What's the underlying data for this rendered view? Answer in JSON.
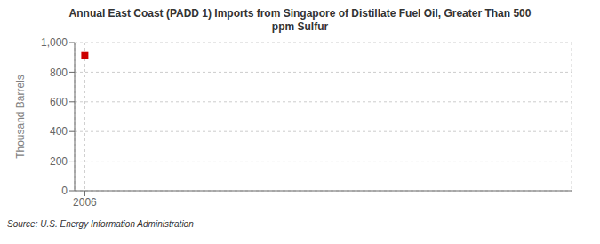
{
  "chart_data": {
    "type": "scatter",
    "title": "Annual East Coast (PADD 1) Imports from Singapore of Distillate Fuel Oil, Greater Than 500\nppm Sulfur",
    "ylabel": "Thousand Barrels",
    "source": "Source: U.S. Energy Information Administration",
    "x": [
      2006
    ],
    "values": [
      912
    ],
    "xlim": [
      2005.5,
      2030
    ],
    "ylim": [
      0,
      1000
    ],
    "xticks": [
      2006
    ],
    "yticks": [
      0,
      200,
      400,
      600,
      800,
      {
        "value": 1000,
        "label": "1,000"
      }
    ],
    "grid": true,
    "color": "#cc0000",
    "marker": "square"
  }
}
